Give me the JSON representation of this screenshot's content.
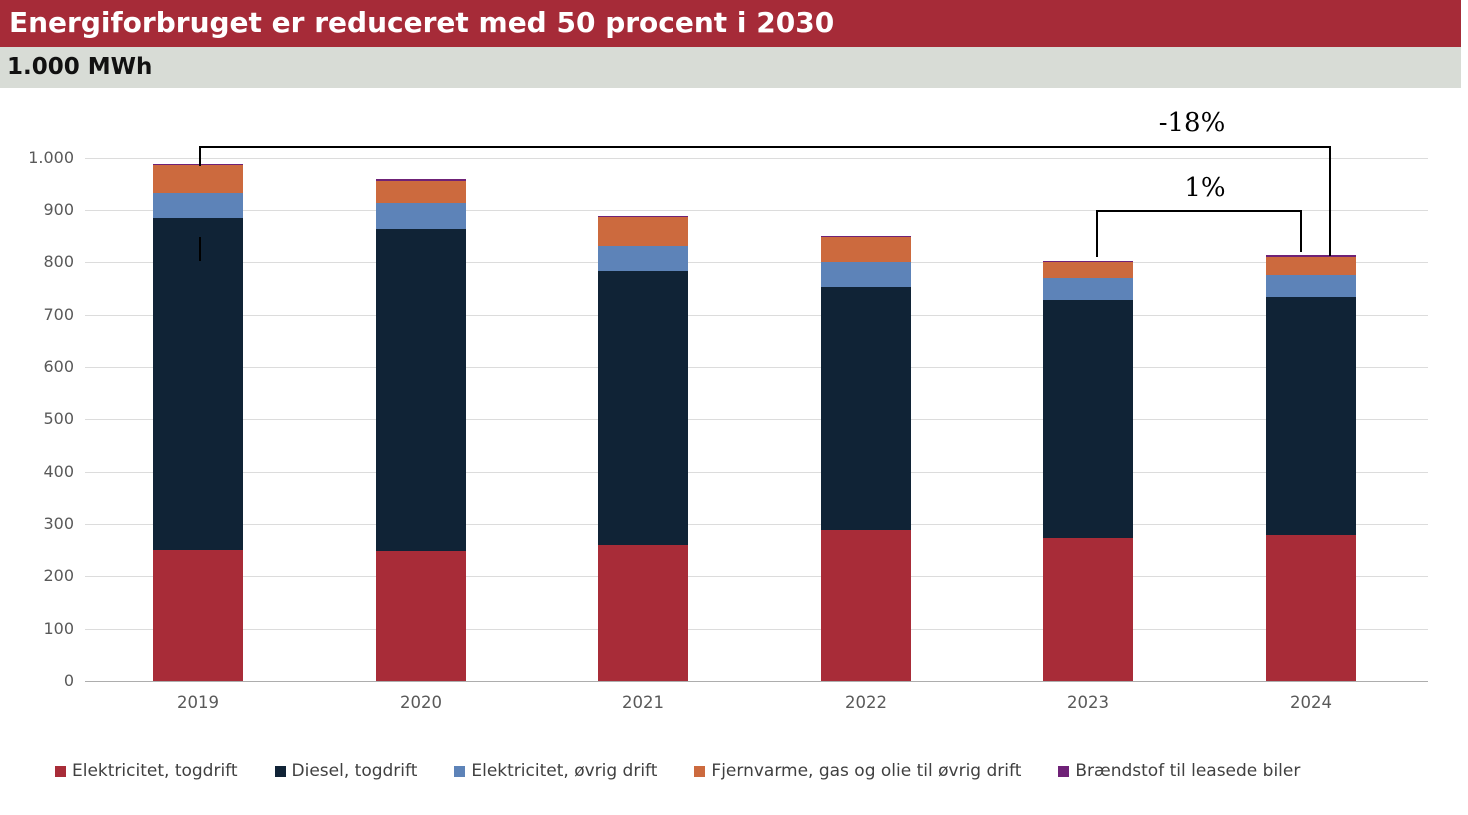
{
  "header": {
    "title": "Energiforbruget er reduceret med 50 procent i 2030",
    "unit_label": "1.000 MWh"
  },
  "colors": {
    "banner": "#a62b38",
    "subtitle_bar": "#d8dcd6",
    "gridline": "#dcdcdc",
    "axis_text": "#595959"
  },
  "chart_data": {
    "type": "bar",
    "stacked": true,
    "title": "Energiforbruget er reduceret med 50 procent i 2030",
    "ylabel": "1.000 MWh",
    "xlabel": "",
    "ylim": [
      0,
      1000
    ],
    "ytick_step": 100,
    "ytick_labels": [
      "0",
      "100",
      "200",
      "300",
      "400",
      "500",
      "600",
      "700",
      "800",
      "900",
      "1.000"
    ],
    "grid": true,
    "legend_position": "bottom",
    "categories": [
      "2019",
      "2020",
      "2021",
      "2022",
      "2023",
      "2024"
    ],
    "series": [
      {
        "name": "Elektricitet, togdrift",
        "color": "#a82c38",
        "values": [
          250,
          248,
          260,
          288,
          274,
          278
        ]
      },
      {
        "name": "Diesel, togdrift",
        "color": "#102336",
        "values": [
          634,
          616,
          523,
          465,
          454,
          456
        ]
      },
      {
        "name": "Elektricitet, øvrig drift",
        "color": "#5d83b8",
        "values": [
          48,
          49,
          48,
          48,
          41,
          42
        ]
      },
      {
        "name": "Fjernvarme, gas og olie til øvrig drift",
        "color": "#cc6a3e",
        "values": [
          53,
          43,
          55,
          48,
          32,
          34
        ]
      },
      {
        "name": "Brændstof til leasede biler",
        "color": "#6f2277",
        "values": [
          3,
          3,
          2,
          2,
          2,
          4
        ]
      }
    ],
    "totals": [
      988,
      959,
      888,
      851,
      803,
      814
    ],
    "annotations": [
      {
        "label": "-18%",
        "from": "2019",
        "to": "2024"
      },
      {
        "label": "1%",
        "from": "2023",
        "to": "2024"
      }
    ]
  }
}
